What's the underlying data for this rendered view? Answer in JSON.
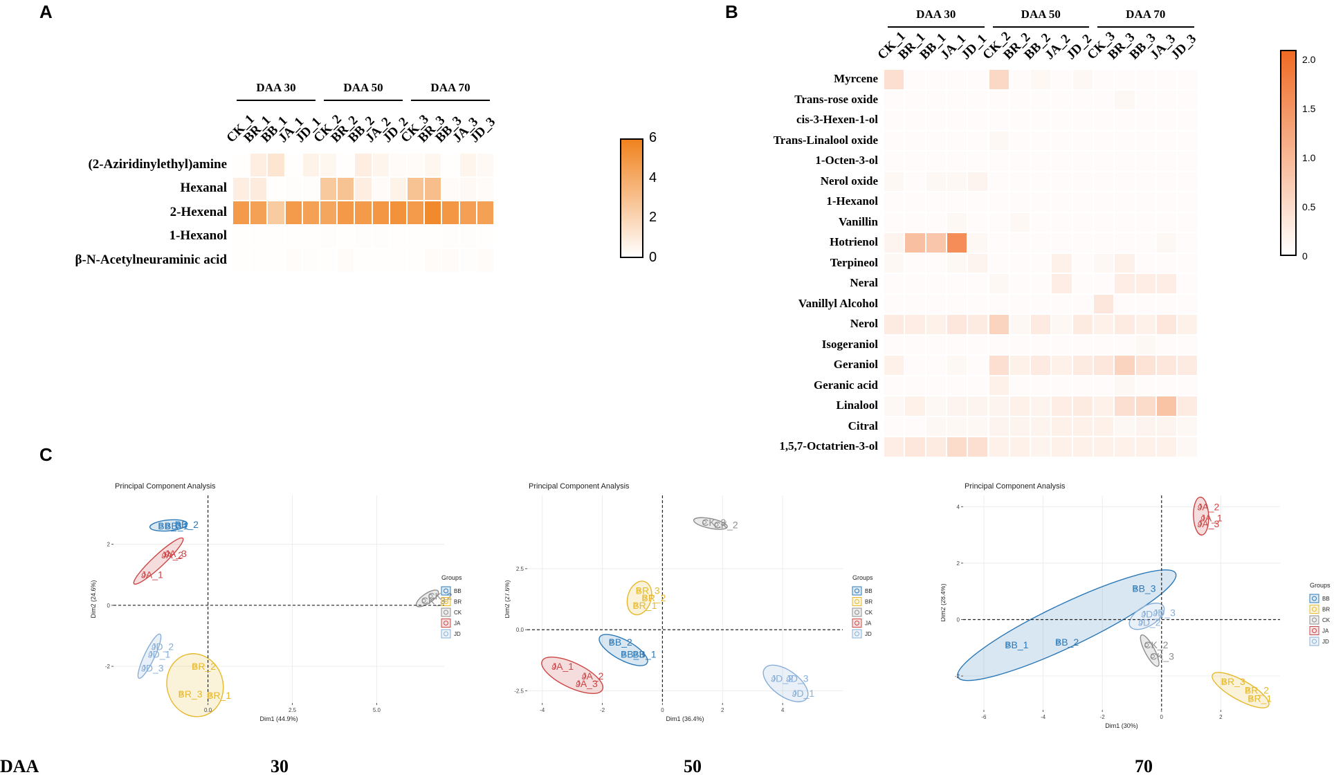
{
  "panel_labels": {
    "a": "A",
    "b": "B",
    "c": "C"
  },
  "bottom": {
    "prefix": "DAA",
    "labels": [
      "30",
      "50",
      "70"
    ]
  },
  "chart_data": [
    {
      "type": "heatmap",
      "panel": "A",
      "groups": [
        "DAA 30",
        "DAA 50",
        "DAA 70"
      ],
      "columns": [
        "CK_1",
        "BR_1",
        "BB_1",
        "JA_1",
        "JD_1",
        "CK_2",
        "BR_2",
        "BB_2",
        "JA_2",
        "JD_2",
        "CK_3",
        "BR_3",
        "BB_3",
        "JA_3",
        "JD_3"
      ],
      "rows": [
        "(2-Aziridinylethyl)amine",
        "Hexanal",
        "2-Hexenal",
        "1-Hexanol",
        "β-N-Acetylneuraminic acid"
      ],
      "values": [
        [
          0.05,
          0.8,
          1.2,
          0.05,
          0.6,
          0.4,
          0.05,
          0.8,
          0.5,
          0.2,
          0.2,
          0.4,
          0.05,
          0.5,
          0.3
        ],
        [
          0.8,
          0.9,
          0.05,
          0.1,
          0.1,
          2.6,
          2.9,
          0.8,
          0.2,
          0.6,
          2.9,
          3.1,
          0.2,
          0.3,
          0.2
        ],
        [
          4.8,
          4.5,
          2.5,
          4.8,
          4.5,
          4.3,
          4.9,
          4.8,
          5.0,
          5.2,
          4.8,
          5.6,
          5.0,
          4.6,
          4.5
        ],
        [
          0.05,
          0.05,
          0.05,
          0.05,
          0.05,
          0.1,
          0.05,
          0.1,
          0.1,
          0.05,
          0.05,
          0.05,
          0.1,
          0.1,
          0.05
        ],
        [
          0.05,
          0.05,
          0.05,
          0.15,
          0.1,
          0.05,
          0.2,
          0.05,
          0.05,
          0.05,
          0.05,
          0.2,
          0.2,
          0.1,
          0.2
        ]
      ],
      "colorbar": {
        "min": 0,
        "max": 6,
        "ticks": [
          "0",
          "2",
          "4",
          "6"
        ],
        "low_color": "#ffffff",
        "high_color": "#f0821e"
      }
    },
    {
      "type": "heatmap",
      "panel": "B",
      "groups": [
        "DAA 30",
        "DAA 50",
        "DAA 70"
      ],
      "columns": [
        "CK_1",
        "BR_1",
        "BB_1",
        "JA_1",
        "JD_1",
        "CK_2",
        "BR_2",
        "BB_2",
        "JA_2",
        "JD_2",
        "CK_3",
        "BR_3",
        "BB_3",
        "JA_3",
        "JD_3"
      ],
      "rows": [
        "Myrcene",
        "Trans-rose oxide",
        "cis-3-Hexen-1-ol",
        "Trans-Linalool oxide",
        "1-Octen-3-ol",
        "Nerol oxide",
        "1-Hexanol",
        "Vanillin",
        "Hotrienol",
        "Terpineol",
        "Neral",
        "Vanillyl Alcohol",
        "Nerol",
        "Isogeraniol",
        "Geraniol",
        "Geranic acid",
        "Linalool",
        "Citral",
        "1,5,7-Octatrien-3-ol"
      ],
      "values": [
        [
          0.45,
          0.05,
          0.05,
          0.05,
          0.05,
          0.55,
          0.05,
          0.1,
          0.05,
          0.1,
          0.05,
          0.05,
          0.05,
          0.05,
          0.05
        ],
        [
          0.05,
          0.05,
          0.05,
          0.05,
          0.05,
          0.05,
          0.05,
          0.05,
          0.05,
          0.05,
          0.05,
          0.1,
          0.05,
          0.05,
          0.05
        ],
        [
          0.05,
          0.05,
          0.05,
          0.05,
          0.05,
          0.05,
          0.05,
          0.05,
          0.05,
          0.05,
          0.05,
          0.05,
          0.05,
          0.05,
          0.05
        ],
        [
          0.05,
          0.05,
          0.05,
          0.05,
          0.05,
          0.1,
          0.05,
          0.05,
          0.05,
          0.05,
          0.05,
          0.05,
          0.05,
          0.05,
          0.05
        ],
        [
          0.05,
          0.05,
          0.05,
          0.05,
          0.05,
          0.05,
          0.05,
          0.05,
          0.05,
          0.05,
          0.05,
          0.05,
          0.05,
          0.05,
          0.05
        ],
        [
          0.1,
          0.05,
          0.1,
          0.1,
          0.15,
          0.05,
          0.05,
          0.05,
          0.05,
          0.05,
          0.05,
          0.05,
          0.05,
          0.05,
          0.05
        ],
        [
          0.05,
          0.05,
          0.05,
          0.05,
          0.05,
          0.05,
          0.05,
          0.05,
          0.05,
          0.05,
          0.05,
          0.05,
          0.05,
          0.05,
          0.05
        ],
        [
          0.05,
          0.05,
          0.05,
          0.1,
          0.05,
          0.05,
          0.1,
          0.05,
          0.05,
          0.05,
          0.05,
          0.05,
          0.05,
          0.05,
          0.05
        ],
        [
          0.15,
          0.9,
          0.8,
          1.6,
          0.1,
          0.05,
          0.05,
          0.05,
          0.05,
          0.05,
          0.05,
          0.05,
          0.05,
          0.1,
          0.05
        ],
        [
          0.1,
          0.05,
          0.05,
          0.1,
          0.15,
          0.05,
          0.05,
          0.05,
          0.2,
          0.05,
          0.1,
          0.2,
          0.05,
          0.05,
          0.05
        ],
        [
          0.05,
          0.05,
          0.05,
          0.05,
          0.05,
          0.1,
          0.05,
          0.05,
          0.25,
          0.05,
          0.05,
          0.25,
          0.25,
          0.25,
          0.05
        ],
        [
          0.05,
          0.05,
          0.05,
          0.05,
          0.05,
          0.05,
          0.05,
          0.05,
          0.05,
          0.05,
          0.35,
          0.05,
          0.05,
          0.05,
          0.05
        ],
        [
          0.3,
          0.25,
          0.2,
          0.35,
          0.3,
          0.6,
          0.1,
          0.3,
          0.1,
          0.3,
          0.2,
          0.3,
          0.2,
          0.35,
          0.2
        ],
        [
          0.05,
          0.05,
          0.05,
          0.05,
          0.05,
          0.05,
          0.05,
          0.05,
          0.05,
          0.05,
          0.05,
          0.05,
          0.1,
          0.05,
          0.05
        ],
        [
          0.2,
          0.05,
          0.05,
          0.1,
          0.05,
          0.45,
          0.2,
          0.3,
          0.2,
          0.3,
          0.35,
          0.6,
          0.4,
          0.35,
          0.3
        ],
        [
          0.05,
          0.05,
          0.05,
          0.05,
          0.05,
          0.2,
          0.05,
          0.05,
          0.05,
          0.05,
          0.05,
          0.1,
          0.05,
          0.05,
          0.05
        ],
        [
          0.1,
          0.2,
          0.1,
          0.15,
          0.15,
          0.15,
          0.2,
          0.15,
          0.25,
          0.3,
          0.2,
          0.45,
          0.5,
          0.85,
          0.3
        ],
        [
          0.05,
          0.05,
          0.1,
          0.1,
          0.1,
          0.15,
          0.15,
          0.15,
          0.2,
          0.2,
          0.2,
          0.1,
          0.15,
          0.15,
          0.1
        ],
        [
          0.25,
          0.35,
          0.3,
          0.5,
          0.45,
          0.2,
          0.2,
          0.15,
          0.2,
          0.2,
          0.2,
          0.2,
          0.2,
          0.2,
          0.1
        ]
      ],
      "colorbar": {
        "min": 0,
        "max": 2.1,
        "ticks": [
          "0",
          "0.5",
          "1.0",
          "1.5",
          "2.0"
        ],
        "tick_values": [
          0,
          0.5,
          1.0,
          1.5,
          2.0
        ],
        "low_color": "#ffffff",
        "high_color": "#f06a24"
      }
    },
    {
      "type": "scatter",
      "panel": "C1",
      "title": "Principal Component Analysis",
      "xlabel": "Dim1 (44.9%)",
      "ylabel": "Dim2 (24.6%)",
      "xlim": [
        -2.8,
        7.0
      ],
      "ylim": [
        -3.2,
        3.6
      ],
      "xticks": [
        "0.0",
        "2.5",
        "5.0"
      ],
      "xtick_values": [
        0,
        2.5,
        5.0
      ],
      "yticks": [
        "-2",
        "0",
        "2"
      ],
      "ytick_values": [
        -2,
        0,
        2
      ],
      "legend_title": "Groups",
      "legend": [
        "BB",
        "BR",
        "CK",
        "JA",
        "JD"
      ],
      "points": [
        {
          "label": "BB_3",
          "group": "BB",
          "x": -1.4,
          "y": 2.6
        },
        {
          "label": "BB_2",
          "group": "BB",
          "x": -0.9,
          "y": 2.65
        },
        {
          "label": "BB_1",
          "group": "BB",
          "x": -1.2,
          "y": 2.6
        },
        {
          "label": "JA_3",
          "group": "JA",
          "x": -1.2,
          "y": 1.7
        },
        {
          "label": "JA_2",
          "group": "JA",
          "x": -1.3,
          "y": 1.65
        },
        {
          "label": "JA_1",
          "group": "JA",
          "x": -1.9,
          "y": 1.0
        },
        {
          "label": "CK_2",
          "group": "CK",
          "x": 6.6,
          "y": 0.3
        },
        {
          "label": "CK_3",
          "group": "CK",
          "x": 6.4,
          "y": 0.15
        },
        {
          "label": "JD_2",
          "group": "JD",
          "x": -1.6,
          "y": -1.35
        },
        {
          "label": "JD_1",
          "group": "JD",
          "x": -1.7,
          "y": -1.6
        },
        {
          "label": "JD_3",
          "group": "JD",
          "x": -1.9,
          "y": -2.05
        },
        {
          "label": "BR_2",
          "group": "BR",
          "x": -0.4,
          "y": -2.0
        },
        {
          "label": "BR_3",
          "group": "BR",
          "x": -0.8,
          "y": -2.9
        },
        {
          "label": "BR_1",
          "group": "BR",
          "x": 0.05,
          "y": -2.95
        }
      ]
    },
    {
      "type": "scatter",
      "panel": "C2",
      "title": "Principal Component Analysis",
      "xlabel": "Dim1 (36.4%)",
      "ylabel": "Dim2 (27.6%)",
      "xlim": [
        -4.5,
        6.0
      ],
      "ylim": [
        -3.0,
        5.5
      ],
      "xticks": [
        "-4",
        "-2",
        "0",
        "2",
        "4"
      ],
      "xtick_values": [
        -4,
        -2,
        0,
        2,
        4
      ],
      "yticks": [
        "-2.5",
        "0.0",
        "2.5"
      ],
      "ytick_values": [
        -2.5,
        0,
        2.5
      ],
      "legend_title": "Groups",
      "legend": [
        "BB",
        "BR",
        "CK",
        "JA",
        "JD"
      ],
      "points": [
        {
          "label": "CK_3",
          "group": "CK",
          "x": 1.4,
          "y": 4.4
        },
        {
          "label": "CK_2",
          "group": "CK",
          "x": 1.8,
          "y": 4.3
        },
        {
          "label": "BR_3",
          "group": "BR",
          "x": -0.8,
          "y": 1.6
        },
        {
          "label": "BR_2",
          "group": "BR",
          "x": -0.6,
          "y": 1.3
        },
        {
          "label": "BR_1",
          "group": "BR",
          "x": -0.9,
          "y": 1.0
        },
        {
          "label": "BB_2",
          "group": "BB",
          "x": -1.7,
          "y": -0.5
        },
        {
          "label": "BB_3",
          "group": "BB",
          "x": -1.3,
          "y": -1.0
        },
        {
          "label": "BB_1",
          "group": "BB",
          "x": -0.9,
          "y": -1.0
        },
        {
          "label": "JA_1",
          "group": "JA",
          "x": -3.6,
          "y": -1.5
        },
        {
          "label": "JA_2",
          "group": "JA",
          "x": -2.6,
          "y": -1.9
        },
        {
          "label": "JA_3",
          "group": "JA",
          "x": -2.8,
          "y": -2.2
        },
        {
          "label": "JD_2",
          "group": "JD",
          "x": 3.7,
          "y": -2.0
        },
        {
          "label": "JD_3",
          "group": "JD",
          "x": 4.2,
          "y": -2.0
        },
        {
          "label": "JD_1",
          "group": "JD",
          "x": 4.4,
          "y": -2.6
        }
      ]
    },
    {
      "type": "scatter",
      "panel": "C3",
      "title": "Principal Component Analysis",
      "xlabel": "Dim1 (30%)",
      "ylabel": "Dim2 (28.4%)",
      "xlim": [
        -6.7,
        4.0
      ],
      "ylim": [
        -3.2,
        4.4
      ],
      "xticks": [
        "-6",
        "-4",
        "-2",
        "0",
        "2"
      ],
      "xtick_values": [
        -6,
        -4,
        -2,
        0,
        2
      ],
      "yticks": [
        "-2",
        "0",
        "2",
        "4"
      ],
      "ytick_values": [
        -2,
        0,
        2,
        4
      ],
      "legend_title": "Groups",
      "legend": [
        "BB",
        "BR",
        "CK",
        "JA",
        "JD"
      ],
      "points": [
        {
          "label": "JA_2",
          "group": "JA",
          "x": 1.3,
          "y": 4.0
        },
        {
          "label": "JA_1",
          "group": "JA",
          "x": 1.4,
          "y": 3.6
        },
        {
          "label": "JA_3",
          "group": "JA",
          "x": 1.3,
          "y": 3.4
        },
        {
          "label": "BB_3",
          "group": "BB",
          "x": -0.9,
          "y": 1.1
        },
        {
          "label": "BB_1",
          "group": "BB",
          "x": -5.2,
          "y": -0.9
        },
        {
          "label": "BB_2",
          "group": "BB",
          "x": -3.5,
          "y": -0.8
        },
        {
          "label": "JD_1",
          "group": "JD",
          "x": -0.6,
          "y": 0.2
        },
        {
          "label": "JD_3",
          "group": "JD",
          "x": -0.2,
          "y": 0.25
        },
        {
          "label": "JD_2",
          "group": "JD",
          "x": -0.7,
          "y": -0.1
        },
        {
          "label": "CK_2",
          "group": "CK",
          "x": -0.5,
          "y": -0.9
        },
        {
          "label": "CK_3",
          "group": "CK",
          "x": -0.3,
          "y": -1.3
        },
        {
          "label": "BR_3",
          "group": "BR",
          "x": 2.1,
          "y": -2.2
        },
        {
          "label": "BR_2",
          "group": "BR",
          "x": 2.9,
          "y": -2.5
        },
        {
          "label": "BR_1",
          "group": "BR",
          "x": 3.0,
          "y": -2.8
        }
      ]
    }
  ],
  "group_colors": {
    "BB": "#2a78b8",
    "BR": "#e6b82a",
    "CK": "#8c8c8c",
    "JA": "#cc4444",
    "JD": "#86aed8"
  }
}
